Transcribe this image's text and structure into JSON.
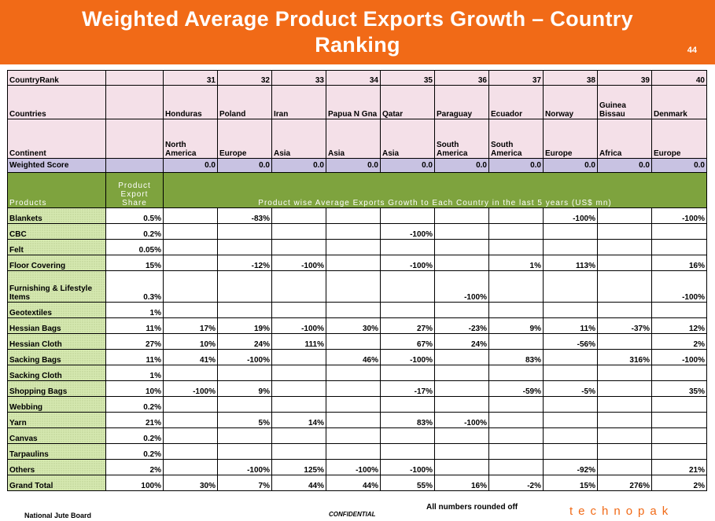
{
  "title": "Weighted Average Product Exports Growth – Country Ranking",
  "page_number": "44",
  "header": {
    "rank_label": "CountryRank",
    "countries_label": "Countries",
    "continent_label": "Continent",
    "score_label": "Weighted Score"
  },
  "columns": [
    {
      "rank": "31",
      "country": "Honduras",
      "continent": "North America",
      "score": "0.0"
    },
    {
      "rank": "32",
      "country": "Poland",
      "continent": "Europe",
      "score": "0.0"
    },
    {
      "rank": "33",
      "country": "Iran",
      "continent": "Asia",
      "score": "0.0"
    },
    {
      "rank": "34",
      "country": "Papua N Gna",
      "continent": "Asia",
      "score": "0.0"
    },
    {
      "rank": "35",
      "country": "Qatar",
      "continent": "Asia",
      "score": "0.0"
    },
    {
      "rank": "36",
      "country": "Paraguay",
      "continent": "South America",
      "score": "0.0"
    },
    {
      "rank": "37",
      "country": "Ecuador",
      "continent": "South America",
      "score": "0.0"
    },
    {
      "rank": "38",
      "country": "Norway",
      "continent": "Europe",
      "score": "0.0"
    },
    {
      "rank": "39",
      "country": "Guinea Bissau",
      "continent": "Africa",
      "score": "0.0"
    },
    {
      "rank": "40",
      "country": "Denmark",
      "continent": "Europe",
      "score": "0.0"
    }
  ],
  "products_header": {
    "products_label": "Products",
    "share_label": "Product Export Share",
    "description": "Product wise Average Exports Growth to Each Country in the last 5 years (US$ mn)"
  },
  "rows": [
    {
      "name": "Blankets",
      "share": "0.5%",
      "values": [
        "",
        "-83%",
        "",
        "",
        "",
        "",
        "",
        "-100%",
        "",
        "-100%"
      ]
    },
    {
      "name": "CBC",
      "share": "0.2%",
      "values": [
        "",
        "",
        "",
        "",
        "-100%",
        "",
        "",
        "",
        "",
        ""
      ]
    },
    {
      "name": "Felt",
      "share": "0.05%",
      "values": [
        "",
        "",
        "",
        "",
        "",
        "",
        "",
        "",
        "",
        ""
      ]
    },
    {
      "name": "Floor Covering",
      "share": "15%",
      "values": [
        "",
        "-12%",
        "-100%",
        "",
        "-100%",
        "",
        "1%",
        "113%",
        "",
        "16%"
      ]
    },
    {
      "name": "Furnishing & Lifestyle Items",
      "share": "0.3%",
      "values": [
        "",
        "",
        "",
        "",
        "",
        "-100%",
        "",
        "",
        "",
        "-100%"
      ]
    },
    {
      "name": "Geotextiles",
      "share": "1%",
      "values": [
        "",
        "",
        "",
        "",
        "",
        "",
        "",
        "",
        "",
        ""
      ]
    },
    {
      "name": "Hessian Bags",
      "share": "11%",
      "values": [
        "17%",
        "19%",
        "-100%",
        "30%",
        "27%",
        "-23%",
        "9%",
        "11%",
        "-37%",
        "12%"
      ]
    },
    {
      "name": "Hessian Cloth",
      "share": "27%",
      "values": [
        "10%",
        "24%",
        "111%",
        "",
        "67%",
        "24%",
        "",
        "-56%",
        "",
        "2%"
      ]
    },
    {
      "name": "Sacking Bags",
      "share": "11%",
      "values": [
        "41%",
        "-100%",
        "",
        "46%",
        "-100%",
        "",
        "83%",
        "",
        "316%",
        "-100%"
      ]
    },
    {
      "name": "Sacking Cloth",
      "share": "1%",
      "values": [
        "",
        "",
        "",
        "",
        "",
        "",
        "",
        "",
        "",
        ""
      ]
    },
    {
      "name": "Shopping Bags",
      "share": "10%",
      "values": [
        "-100%",
        "9%",
        "",
        "",
        "-17%",
        "",
        "-59%",
        "-5%",
        "",
        "35%"
      ]
    },
    {
      "name": "Webbing",
      "share": "0.2%",
      "values": [
        "",
        "",
        "",
        "",
        "",
        "",
        "",
        "",
        "",
        ""
      ]
    },
    {
      "name": "Yarn",
      "share": "21%",
      "values": [
        "",
        "5%",
        "14%",
        "",
        "83%",
        "-100%",
        "",
        "",
        "",
        ""
      ]
    },
    {
      "name": "Canvas",
      "share": "0.2%",
      "values": [
        "",
        "",
        "",
        "",
        "",
        "",
        "",
        "",
        "",
        ""
      ]
    },
    {
      "name": "Tarpaulins",
      "share": "0.2%",
      "values": [
        "",
        "",
        "",
        "",
        "",
        "",
        "",
        "",
        "",
        ""
      ]
    },
    {
      "name": "Others",
      "share": "2%",
      "values": [
        "",
        "-100%",
        "125%",
        "-100%",
        "-100%",
        "",
        "",
        "-92%",
        "",
        "21%"
      ]
    },
    {
      "name": "Grand Total",
      "share": "100%",
      "values": [
        "30%",
        "7%",
        "44%",
        "44%",
        "55%",
        "16%",
        "-2%",
        "15%",
        "276%",
        "2%"
      ]
    }
  ],
  "footer": {
    "org": "National Jute Board",
    "confidential": "CONFIDENTIAL",
    "note": "All numbers rounded off",
    "logo": "technopak"
  }
}
